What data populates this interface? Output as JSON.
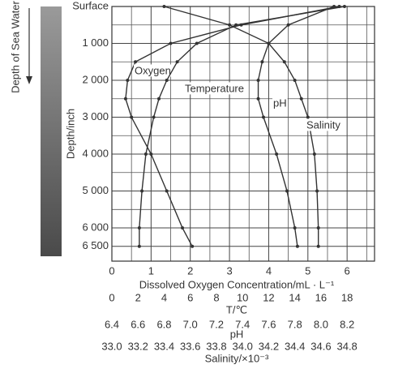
{
  "chart_data": {
    "type": "line",
    "side_label": "Depth of Sea Water",
    "y_label": "Depth/inch",
    "ylim": [
      0,
      6900
    ],
    "yticks": [
      {
        "value": 0,
        "label": "Surface"
      },
      {
        "value": 1000,
        "label": "1 000"
      },
      {
        "value": 2000,
        "label": "2 000"
      },
      {
        "value": 3000,
        "label": "3 000"
      },
      {
        "value": 4000,
        "label": "4 000"
      },
      {
        "value": 5000,
        "label": "5 000"
      },
      {
        "value": 6000,
        "label": "6 000"
      },
      {
        "value": 6500,
        "label": "6 500"
      }
    ],
    "grid": true,
    "y": [
      0,
      500,
      1000,
      1500,
      2000,
      2500,
      3000,
      4000,
      5000,
      6000,
      6500
    ],
    "x_axes": [
      {
        "label": "Dissolved Oxygen Concentration/mL · L⁻¹",
        "xlim": [
          0,
          6.7
        ],
        "xticks": [
          0,
          1,
          2,
          3,
          4,
          5,
          6
        ]
      },
      {
        "label": "T/℃",
        "xlim": [
          0,
          20.1
        ],
        "xticks": [
          0,
          2,
          4,
          6,
          8,
          10,
          12,
          14,
          16,
          18
        ]
      },
      {
        "label": "pH",
        "xlim": [
          6.4,
          8.41
        ],
        "xticks": [
          6.4,
          6.6,
          6.8,
          {
            "value": 7.0,
            "label": "7.0"
          },
          7.2,
          7.4,
          7.6,
          7.8,
          {
            "value": 8.0,
            "label": "8.0"
          },
          8.2
        ]
      },
      {
        "label": "Salinity/×10⁻³",
        "xlim": [
          33.0,
          35.01
        ],
        "xticks": [
          {
            "value": 33.0,
            "label": "33.0"
          },
          33.2,
          33.4,
          33.6,
          33.8,
          {
            "value": 34.0,
            "label": "34.0"
          },
          34.2,
          34.4,
          34.6,
          34.8
        ]
      }
    ],
    "series": [
      {
        "name": "Oxygen",
        "x_axis": 0,
        "color": "#333333",
        "values": [
          5.8,
          3.3,
          1.5,
          0.6,
          0.4,
          0.35,
          0.5,
          1.0,
          1.4,
          1.8,
          2.05
        ]
      },
      {
        "name": "Temperature",
        "x_axis": 1,
        "color": "#333333",
        "values": [
          17.8,
          9.5,
          6.5,
          5.0,
          4.2,
          3.6,
          3.2,
          2.6,
          2.3,
          2.1,
          2.1
        ]
      },
      {
        "name": "pH",
        "x_axis": 2,
        "color": "#333333",
        "values": [
          8.1,
          7.75,
          7.6,
          7.55,
          7.52,
          7.52,
          7.56,
          7.66,
          7.74,
          7.8,
          7.82
        ]
      },
      {
        "name": "Salinity",
        "x_axis": 3,
        "color": "#333333",
        "values": [
          33.4,
          33.9,
          34.2,
          34.32,
          34.4,
          34.45,
          34.5,
          34.55,
          34.57,
          34.58,
          34.58
        ]
      }
    ]
  }
}
